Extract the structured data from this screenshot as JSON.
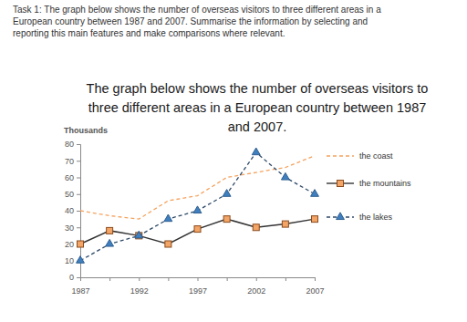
{
  "chart_data": {
    "type": "line",
    "annotations": [
      "Task 1: The graph below shows the number of overseas visitors to three different areas in a",
      "European country between 1987 and 2007. Summarise the information by selecting and",
      "reporting this main features and make comparisons where relevant."
    ],
    "title": "The graph below shows the number of overseas visitors to three different areas in a European country between 1987 and 2007.",
    "y_label": "Thousands",
    "categories": [
      "1987",
      null,
      "1992",
      null,
      "1997",
      null,
      "2002",
      null,
      "2007"
    ],
    "series": [
      {
        "name": "the coast",
        "color": "#f4a35f",
        "line_style": "dashed",
        "marker": "none",
        "values": [
          40,
          37,
          35,
          46,
          49,
          60,
          63,
          66,
          73
        ]
      },
      {
        "name": "the mountains",
        "color": "#333333",
        "line_style": "solid",
        "marker": "square",
        "values": [
          20,
          28,
          25,
          20,
          29,
          35,
          30,
          32,
          35
        ]
      },
      {
        "name": "the lakes",
        "color": "#2f4a68",
        "line_style": "dashed",
        "marker": "triangle",
        "values": [
          10,
          20,
          25,
          35,
          40,
          50,
          75,
          60,
          50
        ]
      }
    ],
    "ylim": [
      0,
      80
    ],
    "yticks": [
      0,
      10,
      20,
      30,
      40,
      50,
      60,
      70,
      80
    ],
    "grid": false,
    "legend": "right"
  }
}
